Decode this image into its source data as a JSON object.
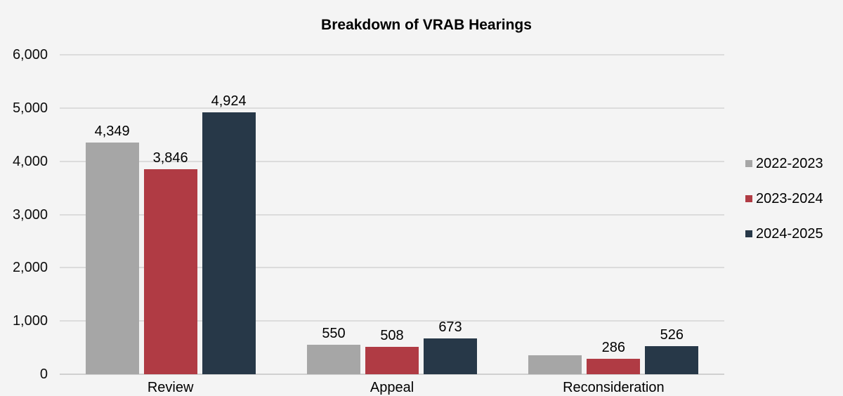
{
  "chart_data": {
    "type": "bar",
    "title": "Breakdown of VRAB Hearings",
    "categories": [
      "Review",
      "Appeal",
      "Reconsideration"
    ],
    "series": [
      {
        "name": "2022-2023",
        "color": "#a6a6a6",
        "values": [
          4349,
          550,
          350
        ],
        "value_labels": [
          "4,349",
          "550",
          ""
        ]
      },
      {
        "name": "2023-2024",
        "color": "#b03b44",
        "values": [
          3846,
          508,
          286
        ],
        "value_labels": [
          "3,846",
          "508",
          "286"
        ]
      },
      {
        "name": "2024-2025",
        "color": "#273848",
        "values": [
          4924,
          673,
          526
        ],
        "value_labels": [
          "4,924",
          "673",
          "526"
        ]
      }
    ],
    "ylim": [
      0,
      6000
    ],
    "yticks": [
      {
        "value": 0,
        "label": "0"
      },
      {
        "value": 1000,
        "label": "1,000"
      },
      {
        "value": 2000,
        "label": "2,000"
      },
      {
        "value": 3000,
        "label": "3,000"
      },
      {
        "value": 4000,
        "label": "4,000"
      },
      {
        "value": 5000,
        "label": "5,000"
      },
      {
        "value": 6000,
        "label": "6,000"
      }
    ],
    "grid": true,
    "legend_position": "right",
    "background": "#f4f4f4",
    "gridline_color": "#dcdcdc"
  }
}
